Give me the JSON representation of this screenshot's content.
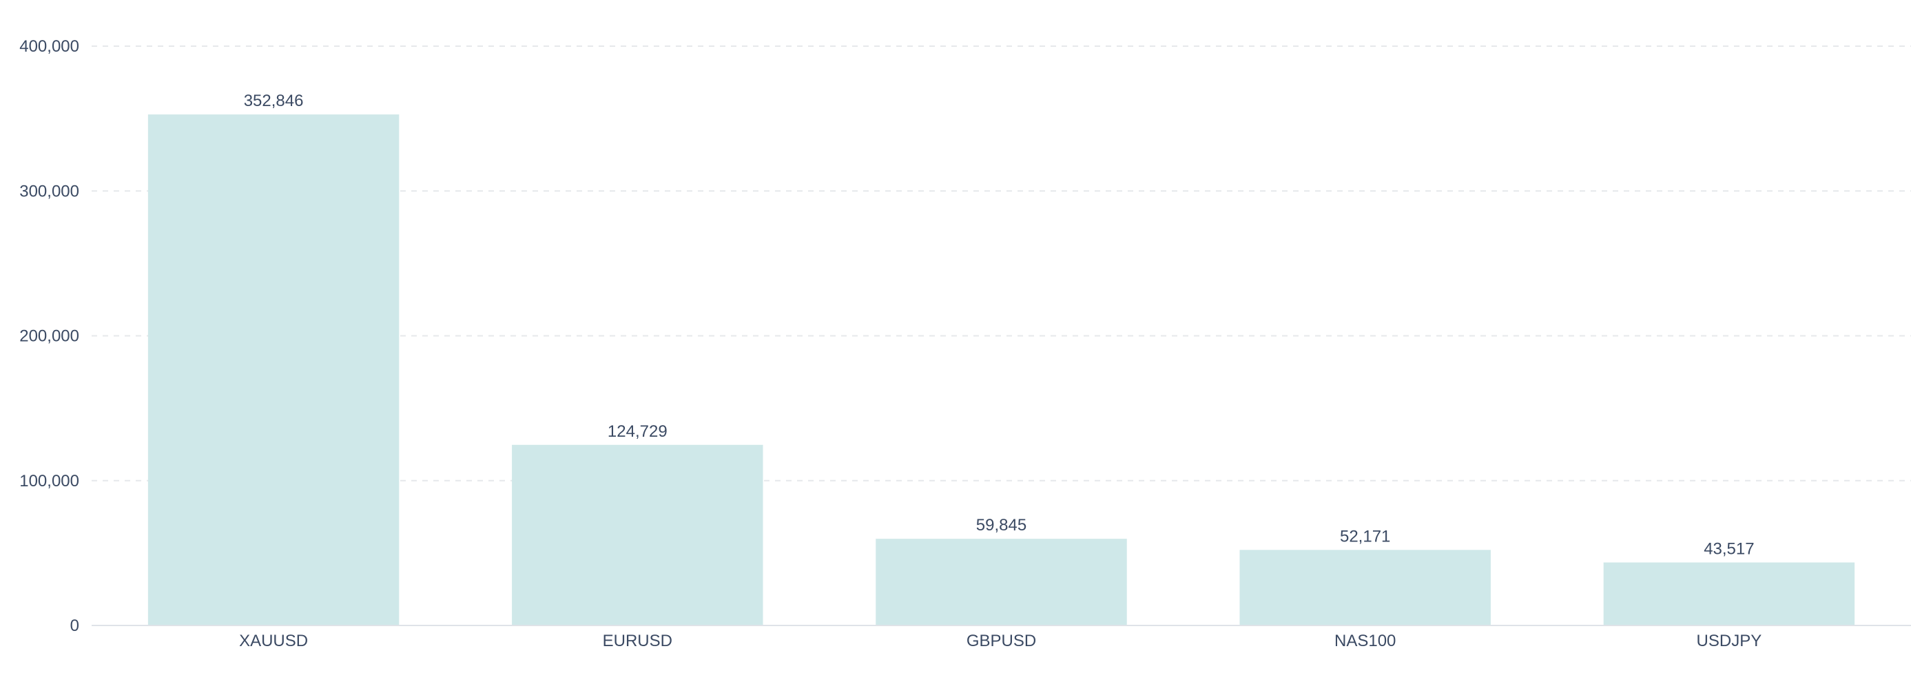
{
  "chart_data": {
    "type": "bar",
    "categories": [
      "XAUUSD",
      "EURUSD",
      "GBPUSD",
      "NAS100",
      "USDJPY"
    ],
    "values": [
      352846,
      124729,
      59845,
      52171,
      43517
    ],
    "value_labels": [
      "352,846",
      "124,729",
      "59,845",
      "52,171",
      "43,517"
    ],
    "ylim": [
      0,
      400000
    ],
    "yticks": [
      0,
      100000,
      200000,
      300000,
      400000
    ],
    "ytick_labels": [
      "0",
      "100,000",
      "200,000",
      "300,000",
      "400,000"
    ],
    "grid": true,
    "grid_style": "dashed",
    "legend": "none"
  },
  "colors": {
    "bar": "#cfe8e9",
    "text": "#3b4a63",
    "grid": "#e6e8eb",
    "axis": "#dfe3e8",
    "background": "#ffffff"
  }
}
